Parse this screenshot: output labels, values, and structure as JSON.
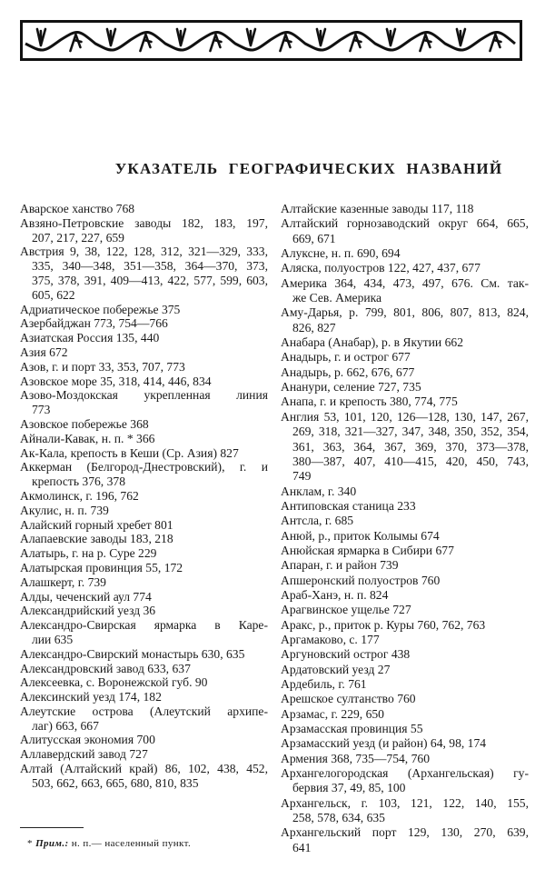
{
  "title": "УКАЗАТЕЛЬ ГЕОГРАФИЧЕСКИХ НАЗВАНИЙ",
  "left_column": [
    {
      "lines": [
        "Аварское ханство 768"
      ]
    },
    {
      "lines": [
        "Авзяно-Петровские заводы 182, 183, 197,",
        "207, 217, 227, 659"
      ]
    },
    {
      "lines": [
        "Австрия 9, 38, 122, 128, 312, 321—329, 333,",
        "335, 340—348, 351—358, 364—370, 373,",
        "375, 378, 391, 409—413, 422, 577, 599, 603,",
        "605, 622"
      ]
    },
    {
      "lines": [
        "Адриатическое побережье 375"
      ]
    },
    {
      "lines": [
        "Азербайджан 773, 754—766"
      ]
    },
    {
      "lines": [
        "Азиатская Россия 135, 440"
      ]
    },
    {
      "lines": [
        "Азия 672"
      ]
    },
    {
      "lines": [
        "Азов, г. и порт 33, 353, 707, 773"
      ]
    },
    {
      "lines": [
        "Азовское море 35, 318, 414, 446, 834"
      ]
    },
    {
      "lines": [
        "Азово-Моздокская укрепленная линия",
        "773"
      ]
    },
    {
      "lines": [
        "Азовское побережье 368"
      ]
    },
    {
      "lines": [
        "Айнали-Кавак, н. п. * 366"
      ]
    },
    {
      "lines": [
        "Ак-Кала, крепость в Кеши (Ср. Азия) 827"
      ]
    },
    {
      "lines": [
        "Аккерман (Белгород-Днестровский), г. и",
        "крепость 376, 378"
      ]
    },
    {
      "lines": [
        "Акмолинск, г. 196, 762"
      ]
    },
    {
      "lines": [
        "Акулис, н. п. 739"
      ]
    },
    {
      "lines": [
        "Алайский горный хребет 801"
      ]
    },
    {
      "lines": [
        "Алапаевские заводы 183, 218"
      ]
    },
    {
      "lines": [
        "Алатырь, г. на р. Суре 229"
      ]
    },
    {
      "lines": [
        "Алатырская провинция 55, 172"
      ]
    },
    {
      "lines": [
        "Алашкерт, г. 739"
      ]
    },
    {
      "lines": [
        "Алды, чеченский аул 774"
      ]
    },
    {
      "lines": [
        "Александрийский уезд 36"
      ]
    },
    {
      "lines": [
        "Александро-Свирская ярмарка в Каре-",
        "лии 635"
      ]
    },
    {
      "lines": [
        "Александро-Свирский монастырь 630, 635"
      ]
    },
    {
      "lines": [
        "Александровский завод 633, 637"
      ]
    },
    {
      "lines": [
        "Алексеевка, с. Воронежской губ. 90"
      ]
    },
    {
      "lines": [
        "Алексинский уезд 174, 182"
      ]
    },
    {
      "lines": [
        "Алеутские острова (Алеутский архипе-",
        "лаг) 663, 667"
      ]
    },
    {
      "lines": [
        "Алитусская экономия 700"
      ]
    },
    {
      "lines": [
        "Аллавердский завод 727"
      ]
    },
    {
      "lines": [
        "Алтай (Алтайский край) 86, 102, 438, 452,",
        "503, 662, 663, 665, 680, 810, 835"
      ]
    }
  ],
  "right_column": [
    {
      "lines": [
        "Алтайские казенные заводы 117, 118"
      ]
    },
    {
      "lines": [
        "Алтайский горнозаводский округ 664, 665,",
        "669, 671"
      ]
    },
    {
      "lines": [
        "Алуксне, н. п. 690, 694"
      ]
    },
    {
      "lines": [
        "Аляска, полуостров 122, 427, 437, 677"
      ]
    },
    {
      "lines": [
        "Америка 364, 434, 473, 497, 676. См. так-",
        "же Сев. Америка"
      ]
    },
    {
      "lines": [
        "Аму-Дарья, р. 799, 801, 806, 807, 813, 824,",
        "826, 827"
      ]
    },
    {
      "lines": [
        "Анабара (Анабар), р. в Якутии 662"
      ]
    },
    {
      "lines": [
        "Анадырь, г. и острог 677"
      ]
    },
    {
      "lines": [
        "Анадырь, р. 662, 676, 677"
      ]
    },
    {
      "lines": [
        "Ананури, селение 727, 735"
      ]
    },
    {
      "lines": [
        "Анапа, г. и крепость 380, 774, 775"
      ]
    },
    {
      "lines": [
        "Англия 53, 101, 120, 126—128, 130, 147, 267,",
        "269, 318, 321—327, 347, 348, 350, 352, 354,",
        "361, 363, 364, 367, 369, 370, 373—378,",
        "380—387, 407, 410—415, 420, 450, 743,",
        "749"
      ]
    },
    {
      "lines": [
        "Анклам, г. 340"
      ]
    },
    {
      "lines": [
        "Антиповская станица 233"
      ]
    },
    {
      "lines": [
        "Антсла, г. 685"
      ]
    },
    {
      "lines": [
        "Анюй, р., приток Колымы 674"
      ]
    },
    {
      "lines": [
        "Анюйская ярмарка в Сибири 677"
      ]
    },
    {
      "lines": [
        "Апаран, г. и район 739"
      ]
    },
    {
      "lines": [
        "Апшеронский полуостров 760"
      ]
    },
    {
      "lines": [
        "Араб-Ханэ, н. п. 824"
      ]
    },
    {
      "lines": [
        "Арагвинское ущелье 727"
      ]
    },
    {
      "lines": [
        "Аракс, р., приток р. Куры 760, 762, 763"
      ]
    },
    {
      "lines": [
        "Аргамаково, с. 177"
      ]
    },
    {
      "lines": [
        "Аргуновский острог 438"
      ]
    },
    {
      "lines": [
        "Ардатовский уезд 27"
      ]
    },
    {
      "lines": [
        "Ардебиль, г. 761"
      ]
    },
    {
      "lines": [
        "Арешское султанство 760"
      ]
    },
    {
      "lines": [
        "Арзамас, г. 229, 650"
      ]
    },
    {
      "lines": [
        "Арзамасская провинция 55"
      ]
    },
    {
      "lines": [
        "Арзамасский уезд (и район) 64, 98, 174"
      ]
    },
    {
      "lines": [
        "Армения 368, 735—754, 760"
      ]
    },
    {
      "lines": [
        "Архангелогородская (Архангельская) гу-",
        "бервия 37, 49, 85, 100"
      ]
    },
    {
      "lines": [
        "Архангельск, г. 103, 121, 122, 140, 155,",
        "258, 578, 634, 635"
      ]
    },
    {
      "lines": [
        "Архангельский порт 129, 130, 270, 639,",
        "641"
      ]
    }
  ],
  "footnote": {
    "marker": "*",
    "label": "Прим.:",
    "text": "н. п.— населенный пункт."
  },
  "ornament": {
    "icon": "vine-border-ornament",
    "color": "#111111"
  }
}
